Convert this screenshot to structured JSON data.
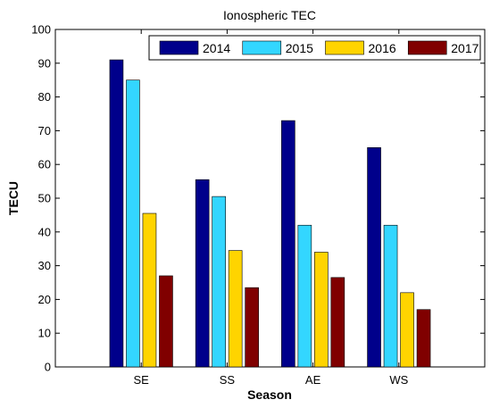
{
  "chart_data": {
    "type": "bar",
    "title": "Ionospheric TEC",
    "xlabel": "Season",
    "ylabel": "TECU",
    "categories": [
      "SE",
      "SS",
      "AE",
      "WS"
    ],
    "ylim": [
      0,
      100
    ],
    "yticks": [
      0,
      10,
      20,
      30,
      40,
      50,
      60,
      70,
      80,
      90,
      100
    ],
    "grid": false,
    "legend_position": "top-right",
    "series": [
      {
        "name": "2014",
        "color": "#00008B",
        "values": [
          91,
          55.5,
          73,
          65
        ]
      },
      {
        "name": "2015",
        "color": "#33D6FF",
        "values": [
          85,
          50.5,
          42,
          42
        ]
      },
      {
        "name": "2016",
        "color": "#FFD400",
        "values": [
          45.5,
          34.5,
          34,
          22
        ]
      },
      {
        "name": "2017",
        "color": "#800000",
        "values": [
          27,
          23.5,
          26.5,
          17
        ]
      }
    ]
  }
}
